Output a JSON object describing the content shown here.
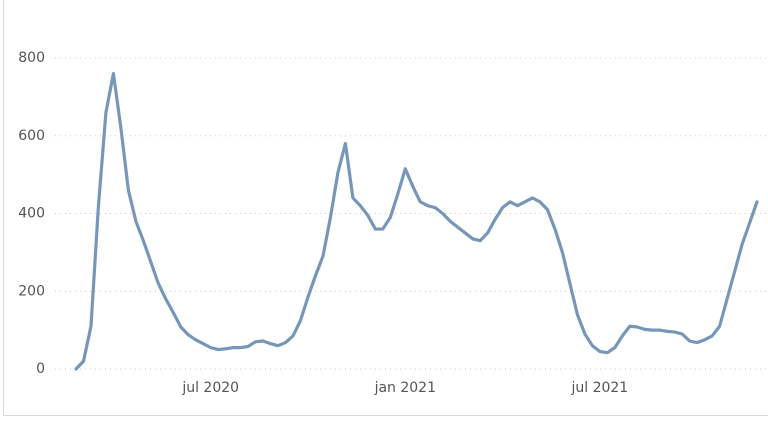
{
  "chart_data": {
    "type": "line",
    "categories": [
      null,
      null,
      null,
      null,
      null,
      null,
      null,
      null,
      null,
      null,
      null,
      null,
      null,
      null,
      null,
      null,
      null,
      null,
      "jul 2020",
      null,
      null,
      null,
      null,
      null,
      null,
      null,
      null,
      null,
      null,
      null,
      null,
      null,
      null,
      null,
      null,
      null,
      null,
      null,
      null,
      null,
      null,
      null,
      null,
      null,
      "jan 2021",
      null,
      null,
      null,
      null,
      null,
      null,
      null,
      null,
      null,
      null,
      null,
      null,
      null,
      null,
      null,
      null,
      null,
      null,
      null,
      null,
      null,
      null,
      null,
      null,
      null,
      "jul 2021",
      null,
      null,
      null,
      null,
      null,
      null,
      null,
      null,
      null,
      null,
      null,
      null,
      null,
      null,
      null,
      null,
      null,
      null,
      null,
      null,
      null
    ],
    "values": [
      0,
      20,
      110,
      420,
      660,
      760,
      620,
      460,
      380,
      330,
      275,
      220,
      180,
      145,
      108,
      88,
      75,
      65,
      55,
      50,
      52,
      55,
      55,
      58,
      70,
      72,
      65,
      60,
      68,
      85,
      125,
      185,
      240,
      290,
      390,
      505,
      580,
      440,
      420,
      395,
      360,
      360,
      390,
      450,
      515,
      470,
      430,
      420,
      415,
      400,
      380,
      365,
      350,
      335,
      330,
      350,
      385,
      415,
      430,
      420,
      430,
      440,
      430,
      410,
      360,
      300,
      220,
      140,
      90,
      60,
      45,
      42,
      55,
      85,
      110,
      108,
      102,
      100,
      100,
      97,
      95,
      90,
      72,
      68,
      75,
      85,
      110,
      180,
      250,
      320,
      375,
      430
    ],
    "color": "#7797b8",
    "ylim": [
      0,
      800
    ],
    "yticks": [
      0,
      200,
      400,
      600,
      800
    ],
    "grid": true
  }
}
